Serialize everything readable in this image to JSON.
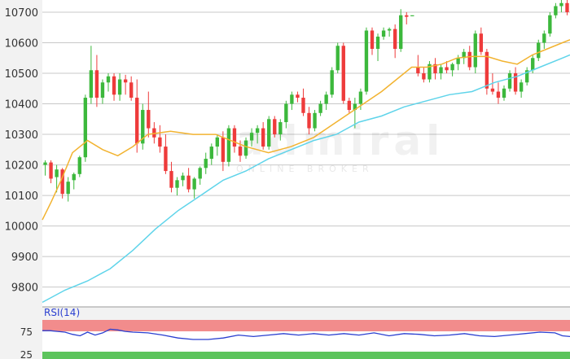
{
  "chart_data": {
    "type": "candlestick",
    "ylim": [
      9735,
      10740
    ],
    "yticks": [
      "10700",
      "10600",
      "10500",
      "10400",
      "10300",
      "10200",
      "10100",
      "10000",
      "9900",
      "9800"
    ],
    "grid": true,
    "colors": {
      "up": "#3cb83c",
      "down": "#ee3b3b",
      "ma_fast": "#f2b330",
      "ma_slow": "#5fd4ea",
      "rsi_line": "#2a3fd0",
      "rsi_over": "#f28c8c",
      "rsi_under": "#5cc45c"
    },
    "ohlc": [
      [
        10200,
        10215,
        10165,
        10208
      ],
      [
        10208,
        10215,
        10140,
        10155
      ],
      [
        10160,
        10200,
        10110,
        10185
      ],
      [
        10185,
        10190,
        10090,
        10105
      ],
      [
        10105,
        10160,
        10080,
        10145
      ],
      [
        10150,
        10175,
        10120,
        10170
      ],
      [
        10170,
        10230,
        10160,
        10225
      ],
      [
        10225,
        10430,
        10210,
        10420
      ],
      [
        10420,
        10590,
        10400,
        10510
      ],
      [
        10510,
        10560,
        10390,
        10420
      ],
      [
        10420,
        10480,
        10400,
        10470
      ],
      [
        10470,
        10500,
        10440,
        10490
      ],
      [
        10490,
        10500,
        10410,
        10430
      ],
      [
        10430,
        10500,
        10410,
        10480
      ],
      [
        10480,
        10495,
        10430,
        10470
      ],
      [
        10470,
        10490,
        10410,
        10420
      ],
      [
        10420,
        10480,
        10240,
        10270
      ],
      [
        10270,
        10400,
        10250,
        10380
      ],
      [
        10380,
        10440,
        10290,
        10320
      ],
      [
        10320,
        10340,
        10270,
        10290
      ],
      [
        10290,
        10330,
        10240,
        10260
      ],
      [
        10260,
        10300,
        10170,
        10180
      ],
      [
        10180,
        10210,
        10110,
        10125
      ],
      [
        10125,
        10160,
        10100,
        10150
      ],
      [
        10150,
        10175,
        10130,
        10165
      ],
      [
        10165,
        10190,
        10110,
        10120
      ],
      [
        10120,
        10160,
        10090,
        10155
      ],
      [
        10155,
        10195,
        10135,
        10190
      ],
      [
        10190,
        10240,
        10170,
        10220
      ],
      [
        10220,
        10270,
        10200,
        10260
      ],
      [
        10260,
        10300,
        10230,
        10290
      ],
      [
        10290,
        10310,
        10180,
        10210
      ],
      [
        10210,
        10330,
        10195,
        10320
      ],
      [
        10320,
        10330,
        10240,
        10260
      ],
      [
        10260,
        10280,
        10210,
        10230
      ],
      [
        10230,
        10290,
        10220,
        10280
      ],
      [
        10280,
        10320,
        10260,
        10305
      ],
      [
        10305,
        10330,
        10270,
        10320
      ],
      [
        10320,
        10340,
        10250,
        10260
      ],
      [
        10260,
        10360,
        10250,
        10350
      ],
      [
        10350,
        10360,
        10290,
        10300
      ],
      [
        10300,
        10350,
        10280,
        10340
      ],
      [
        10340,
        10410,
        10320,
        10400
      ],
      [
        10400,
        10440,
        10380,
        10430
      ],
      [
        10430,
        10440,
        10405,
        10420
      ],
      [
        10420,
        10450,
        10360,
        10370
      ],
      [
        10370,
        10390,
        10300,
        10320
      ],
      [
        10320,
        10380,
        10310,
        10370
      ],
      [
        10370,
        10410,
        10360,
        10400
      ],
      [
        10400,
        10440,
        10380,
        10430
      ],
      [
        10430,
        10520,
        10420,
        10510
      ],
      [
        10510,
        10600,
        10500,
        10590
      ],
      [
        10590,
        10600,
        10400,
        10410
      ],
      [
        10410,
        10420,
        10370,
        10380
      ],
      [
        10380,
        10420,
        10320,
        10400
      ],
      [
        10400,
        10450,
        10380,
        10440
      ],
      [
        10440,
        10650,
        10430,
        10640
      ],
      [
        10640,
        10650,
        10560,
        10580
      ],
      [
        10580,
        10630,
        10540,
        10620
      ],
      [
        10620,
        10650,
        10610,
        10640
      ],
      [
        10640,
        10650,
        10620,
        10645
      ],
      [
        10645,
        10660,
        10550,
        10580
      ],
      [
        10580,
        10710,
        10570,
        10690
      ],
      [
        10690,
        10700,
        10660,
        10685
      ],
      [
        10690,
        10690,
        10690,
        10690
      ],
      [
        10520,
        10560,
        10490,
        10500
      ],
      [
        10500,
        10520,
        10470,
        10480
      ],
      [
        10480,
        10540,
        10470,
        10530
      ],
      [
        10530,
        10550,
        10480,
        10500
      ],
      [
        10500,
        10530,
        10480,
        10520
      ],
      [
        10520,
        10540,
        10500,
        10510
      ],
      [
        10510,
        10535,
        10490,
        10530
      ],
      [
        10530,
        10560,
        10510,
        10550
      ],
      [
        10550,
        10580,
        10530,
        10570
      ],
      [
        10570,
        10590,
        10510,
        10520
      ],
      [
        10520,
        10640,
        10500,
        10630
      ],
      [
        10630,
        10650,
        10560,
        10570
      ],
      [
        10570,
        10580,
        10430,
        10450
      ],
      [
        10450,
        10500,
        10430,
        10440
      ],
      [
        10440,
        10470,
        10400,
        10420
      ],
      [
        10420,
        10460,
        10410,
        10450
      ],
      [
        10450,
        10510,
        10440,
        10500
      ],
      [
        10500,
        10520,
        10430,
        10440
      ],
      [
        10440,
        10480,
        10420,
        10470
      ],
      [
        10470,
        10520,
        10460,
        10510
      ],
      [
        10510,
        10560,
        10500,
        10550
      ],
      [
        10550,
        10610,
        10540,
        10600
      ],
      [
        10600,
        10640,
        10580,
        10630
      ],
      [
        10630,
        10700,
        10620,
        10690
      ],
      [
        10690,
        10730,
        10680,
        10720
      ],
      [
        10720,
        10740,
        10700,
        10730
      ],
      [
        10730,
        10740,
        10690,
        10700
      ]
    ],
    "ma_fast": [
      [
        0,
        10020
      ],
      [
        12,
        10080
      ],
      [
        25,
        10150
      ],
      [
        40,
        10240
      ],
      [
        60,
        10280
      ],
      [
        80,
        10250
      ],
      [
        100,
        10230
      ],
      [
        120,
        10260
      ],
      [
        140,
        10300
      ],
      [
        170,
        10310
      ],
      [
        200,
        10300
      ],
      [
        230,
        10300
      ],
      [
        250,
        10280
      ],
      [
        270,
        10260
      ],
      [
        300,
        10240
      ],
      [
        330,
        10260
      ],
      [
        360,
        10290
      ],
      [
        390,
        10340
      ],
      [
        420,
        10390
      ],
      [
        450,
        10440
      ],
      [
        470,
        10480
      ],
      [
        490,
        10520
      ],
      [
        510,
        10520
      ],
      [
        530,
        10530
      ],
      [
        550,
        10550
      ],
      [
        570,
        10555
      ],
      [
        590,
        10555
      ],
      [
        610,
        10540
      ],
      [
        630,
        10530
      ],
      [
        650,
        10560
      ],
      [
        670,
        10580
      ],
      [
        690,
        10600
      ],
      [
        700,
        10610
      ]
    ],
    "ma_slow": [
      [
        0,
        9750
      ],
      [
        30,
        9790
      ],
      [
        60,
        9820
      ],
      [
        90,
        9860
      ],
      [
        120,
        9920
      ],
      [
        150,
        9990
      ],
      [
        180,
        10050
      ],
      [
        210,
        10100
      ],
      [
        240,
        10150
      ],
      [
        270,
        10180
      ],
      [
        300,
        10220
      ],
      [
        330,
        10250
      ],
      [
        360,
        10280
      ],
      [
        390,
        10300
      ],
      [
        420,
        10340
      ],
      [
        450,
        10360
      ],
      [
        480,
        10390
      ],
      [
        510,
        10410
      ],
      [
        540,
        10430
      ],
      [
        570,
        10440
      ],
      [
        600,
        10470
      ],
      [
        630,
        10490
      ],
      [
        660,
        10520
      ],
      [
        690,
        10550
      ],
      [
        700,
        10560
      ]
    ],
    "rsi": {
      "label": "RSI(14)",
      "yticks": [
        "75",
        "25"
      ],
      "overbought": 70,
      "oversold": 30,
      "values": [
        [
          0,
          72
        ],
        [
          10,
          72
        ],
        [
          20,
          71
        ],
        [
          30,
          70
        ],
        [
          40,
          67
        ],
        [
          50,
          65
        ],
        [
          60,
          70
        ],
        [
          70,
          66
        ],
        [
          80,
          69
        ],
        [
          90,
          74
        ],
        [
          100,
          73
        ],
        [
          110,
          71
        ],
        [
          120,
          70
        ],
        [
          140,
          69
        ],
        [
          160,
          66
        ],
        [
          180,
          62
        ],
        [
          200,
          60
        ],
        [
          220,
          60
        ],
        [
          240,
          62
        ],
        [
          260,
          66
        ],
        [
          280,
          64
        ],
        [
          300,
          66
        ],
        [
          320,
          68
        ],
        [
          340,
          66
        ],
        [
          360,
          68
        ],
        [
          380,
          66
        ],
        [
          400,
          68
        ],
        [
          420,
          66
        ],
        [
          440,
          69
        ],
        [
          460,
          65
        ],
        [
          480,
          68
        ],
        [
          500,
          67
        ],
        [
          520,
          65
        ],
        [
          540,
          66
        ],
        [
          560,
          68
        ],
        [
          580,
          65
        ],
        [
          600,
          64
        ],
        [
          620,
          66
        ],
        [
          640,
          68
        ],
        [
          660,
          70
        ],
        [
          680,
          69
        ],
        [
          690,
          65
        ],
        [
          700,
          64
        ]
      ]
    }
  },
  "watermark": {
    "brand": "admiral",
    "tagline": "ONLINE BROKER"
  }
}
